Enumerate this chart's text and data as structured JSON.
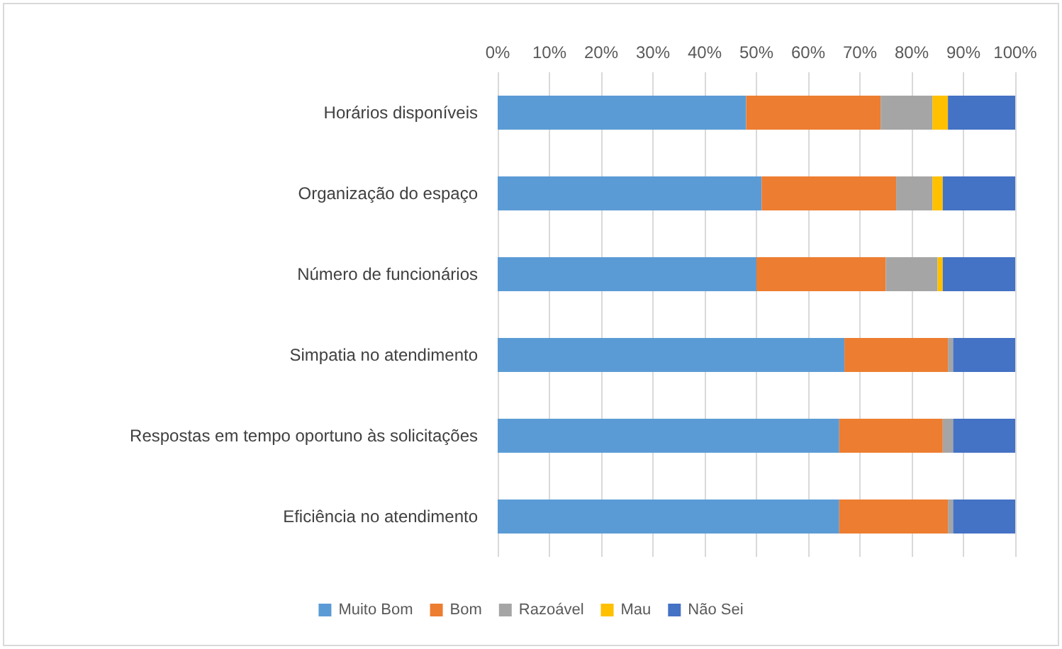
{
  "chart_data": {
    "type": "bar",
    "orientation": "horizontal",
    "stacked": true,
    "categories": [
      "Horários disponíveis",
      "Organização do espaço",
      "Número de funcionários",
      "Simpatia no atendimento",
      "Respostas em tempo oportuno às solicitações",
      "Eficiência no atendimento"
    ],
    "series": [
      {
        "name": "Muito Bom",
        "color": "#5b9bd5",
        "values": [
          48,
          51,
          50,
          67,
          66,
          66
        ]
      },
      {
        "name": "Bom",
        "color": "#ed7d31",
        "values": [
          26,
          26,
          25,
          20,
          20,
          21
        ]
      },
      {
        "name": "Razoável",
        "color": "#a5a5a5",
        "values": [
          10,
          7,
          10,
          1,
          2,
          1
        ]
      },
      {
        "name": "Mau",
        "color": "#ffc000",
        "values": [
          3,
          2,
          1,
          0,
          0,
          0
        ]
      },
      {
        "name": "Não Sei",
        "color": "#4472c4",
        "values": [
          13,
          14,
          14,
          12,
          12,
          12
        ]
      }
    ],
    "xlim": [
      0,
      100
    ],
    "xticks": [
      {
        "value": 0,
        "label": "0%"
      },
      {
        "value": 10,
        "label": "10%"
      },
      {
        "value": 20,
        "label": "20%"
      },
      {
        "value": 30,
        "label": "30%"
      },
      {
        "value": 40,
        "label": "40%"
      },
      {
        "value": 50,
        "label": "50%"
      },
      {
        "value": 60,
        "label": "60%"
      },
      {
        "value": 70,
        "label": "70%"
      },
      {
        "value": 80,
        "label": "80%"
      },
      {
        "value": 90,
        "label": "90%"
      },
      {
        "value": 100,
        "label": "100%"
      }
    ],
    "grid": "x",
    "legend": "bottom"
  }
}
